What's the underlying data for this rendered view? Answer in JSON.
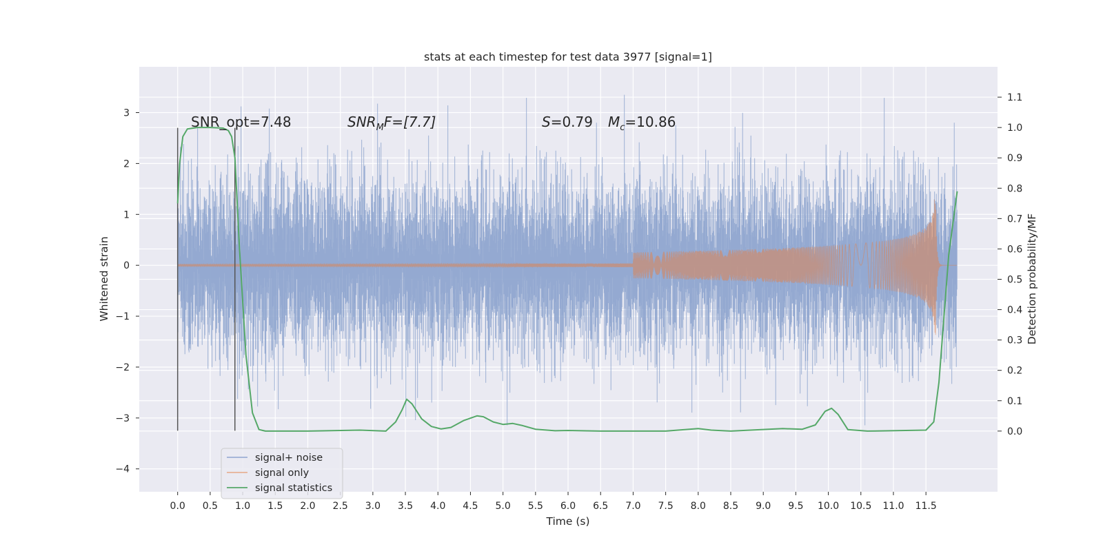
{
  "chart_data": {
    "type": "line",
    "title": "stats at each timestep for test data 3977 [signal=1]",
    "xlabel": "Time (s)",
    "ylabel": "Whitened strain",
    "ylabel_right": "Detection probability/MF",
    "xlim": [
      -0.59,
      12.6
    ],
    "ylim": [
      -4.45,
      3.9
    ],
    "ylim_right": [
      -0.2,
      1.2
    ],
    "x_ticks": [
      "0.0",
      "0.5",
      "1.0",
      "1.5",
      "2.0",
      "2.5",
      "3.0",
      "3.5",
      "4.0",
      "4.5",
      "5.0",
      "5.5",
      "6.0",
      "6.5",
      "7.0",
      "7.5",
      "8.0",
      "8.5",
      "9.0",
      "9.5",
      "10.0",
      "10.5",
      "11.0",
      "11.5"
    ],
    "y_ticks": [
      "3",
      "2",
      "1",
      "0",
      "−1",
      "−2",
      "−3",
      "−4"
    ],
    "y_ticks_right": [
      "1.1",
      "1.0",
      "0.9",
      "0.8",
      "0.7",
      "0.6",
      "0.5",
      "0.4",
      "0.3",
      "0.2",
      "0.1",
      "0.0"
    ],
    "grid": true,
    "legend_position": "lower-left",
    "annotations": {
      "snr_opt": "SNR_opt=7.48",
      "snr_mf": "SNR",
      "snr_mf_sub": "M",
      "snr_mf_tail": "F=[7.7]",
      "s_label": "S",
      "s_value": "=0.79",
      "mc_label": "M",
      "mc_sub": "c",
      "mc_value": "=10.86"
    },
    "vlines_x": [
      0.0,
      0.88
    ],
    "series": [
      {
        "name": "signal+ noise",
        "color": "#8fa5cf",
        "description": "whitened strain noise trace",
        "x_range": [
          0.0,
          11.98
        ],
        "approx_envelope_p95": 1.55,
        "approx_max": 3.5,
        "approx_min": -4.1
      },
      {
        "name": "signal only",
        "color": "#dd8452",
        "description": "chirp growing to peak amplitude ~1.4 near merger",
        "merger_time": 11.65,
        "peak_amplitude": 1.4
      },
      {
        "name": "signal statistics",
        "color": "#55a868",
        "axis": "right",
        "x": [
          0.0,
          0.03,
          0.08,
          0.15,
          0.3,
          0.5,
          0.7,
          0.78,
          0.83,
          0.88,
          0.95,
          1.05,
          1.15,
          1.25,
          1.35,
          1.5,
          2.0,
          2.8,
          3.2,
          3.35,
          3.45,
          3.52,
          3.6,
          3.75,
          3.9,
          4.05,
          4.2,
          4.4,
          4.6,
          4.7,
          4.85,
          5.0,
          5.15,
          5.3,
          5.5,
          5.8,
          6.0,
          6.5,
          7.5,
          8.0,
          8.2,
          8.5,
          9.3,
          9.6,
          9.8,
          9.95,
          10.05,
          10.15,
          10.3,
          10.6,
          11.5,
          11.62,
          11.7,
          11.85,
          11.98
        ],
        "values": [
          0.75,
          0.88,
          0.97,
          0.995,
          1.0,
          1.0,
          0.998,
          0.99,
          0.97,
          0.9,
          0.6,
          0.25,
          0.06,
          0.005,
          0.0,
          0.0,
          0.0,
          0.003,
          0.0,
          0.03,
          0.07,
          0.105,
          0.09,
          0.04,
          0.015,
          0.007,
          0.012,
          0.035,
          0.05,
          0.047,
          0.03,
          0.022,
          0.025,
          0.018,
          0.006,
          0.001,
          0.002,
          0.0,
          0.0,
          0.008,
          0.003,
          0.0,
          0.008,
          0.006,
          0.02,
          0.065,
          0.075,
          0.055,
          0.005,
          0.0,
          0.003,
          0.03,
          0.16,
          0.58,
          0.79
        ]
      }
    ]
  }
}
